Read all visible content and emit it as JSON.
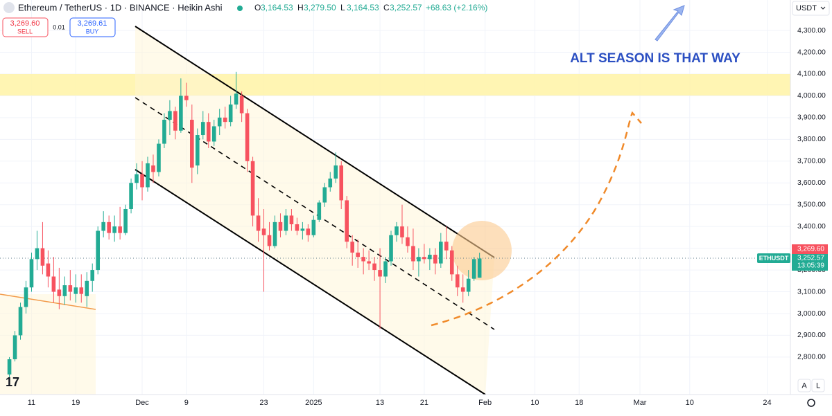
{
  "chart_data": {
    "type": "candlestick",
    "title": "Ethereum / TetherUS · 1D · BINANCE · Heikin Ashi",
    "header_values": [
      {
        "key": "O",
        "text": "3,164.53"
      },
      {
        "key": "H",
        "text": "3,279.50"
      },
      {
        "key": "L",
        "text": "3,164.53"
      },
      {
        "key": "C",
        "text": "3,252.57"
      }
    ],
    "change_text": "+68.63 (+2.16%)",
    "sell": {
      "price": "3,269.60",
      "label": "SELL"
    },
    "buy": {
      "price": "3,269.61",
      "label": "BUY"
    },
    "spread": "0.01",
    "currency": "USDT",
    "annotation": "ALT SEASON IS THAT WAY",
    "symbol": "ETHUSDT",
    "last_price": "3,252.57",
    "countdown": "13:05:39",
    "ask_price": "3,269.60",
    "scale_buttons": [
      "A",
      "L"
    ],
    "up_color": "#22ab94",
    "down_color": "#f7525f",
    "grid": true,
    "ylim": [
      2628,
      4440
    ],
    "yticks": [
      {
        "value": 2800,
        "label": "2,800.00"
      },
      {
        "value": 2900,
        "label": "2,900.00"
      },
      {
        "value": 3000,
        "label": "3,000.00"
      },
      {
        "value": 3100,
        "label": "3,100.00"
      },
      {
        "value": 3200,
        "label": "3,200.00"
      },
      {
        "value": 3300,
        "label": "3,300.00"
      },
      {
        "value": 3400,
        "label": "3,400.00"
      },
      {
        "value": 3500,
        "label": "3,500.00"
      },
      {
        "value": 3600,
        "label": "3,600.00"
      },
      {
        "value": 3700,
        "label": "3,700.00"
      },
      {
        "value": 3800,
        "label": "3,800.00"
      },
      {
        "value": 3900,
        "label": "3,900.00"
      },
      {
        "value": 4000,
        "label": "4,000.00"
      },
      {
        "value": 4100,
        "label": "4,100.00"
      },
      {
        "value": 4200,
        "label": "4,200.00"
      },
      {
        "value": 4300,
        "label": "4,300.00"
      }
    ],
    "xlim": [
      4.3,
      147.2
    ],
    "xticks": [
      {
        "value": 10,
        "label": "11"
      },
      {
        "value": 18,
        "label": "19"
      },
      {
        "value": 30,
        "label": "Dec"
      },
      {
        "value": 38,
        "label": "9"
      },
      {
        "value": 52,
        "label": "23"
      },
      {
        "value": 61,
        "label": "2025"
      },
      {
        "value": 73,
        "label": "13"
      },
      {
        "value": 81,
        "label": "21"
      },
      {
        "value": 92,
        "label": "Feb"
      },
      {
        "value": 101,
        "label": "10"
      },
      {
        "value": 109,
        "label": "18"
      },
      {
        "value": 120,
        "label": "Mar"
      },
      {
        "value": 129,
        "label": "10"
      },
      {
        "value": 143,
        "label": "24"
      }
    ],
    "x": [
      6,
      7,
      8,
      9,
      10,
      11,
      12,
      13,
      14,
      15,
      16,
      17,
      18,
      19,
      20,
      21,
      22,
      23,
      24,
      25,
      26,
      27,
      28,
      29,
      30,
      31,
      32,
      33,
      34,
      35,
      36,
      37,
      38,
      39,
      40,
      41,
      42,
      43,
      44,
      45,
      46,
      47,
      48,
      49,
      50,
      51,
      52,
      53,
      54,
      55,
      56,
      57,
      58,
      59,
      60,
      61,
      62,
      63,
      64,
      65,
      66,
      67,
      68,
      69,
      70,
      71,
      72,
      73,
      74,
      75,
      76,
      77,
      78,
      79,
      80,
      81,
      82,
      83,
      84,
      85,
      86,
      87,
      88,
      89,
      90,
      91
    ],
    "open": [
      2720,
      2790,
      2900,
      3030,
      3120,
      3250,
      3300,
      3230,
      3170,
      3110,
      3080,
      3130,
      3090,
      3120,
      3080,
      3150,
      3200,
      3380,
      3420,
      3370,
      3400,
      3370,
      3480,
      3600,
      3640,
      3580,
      3680,
      3650,
      3780,
      3890,
      3930,
      3840,
      4000,
      3890,
      3680,
      3820,
      3880,
      3790,
      3860,
      3900,
      3880,
      3960,
      4000,
      3920,
      3700,
      3450,
      3390,
      3360,
      3310,
      3420,
      3380,
      3450,
      3410,
      3380,
      3390,
      3360,
      3430,
      3510,
      3580,
      3620,
      3680,
      3520,
      3330,
      3280,
      3260,
      3240,
      3230,
      3200,
      3170,
      3240,
      3360,
      3400,
      3350,
      3310,
      3240,
      3260,
      3250,
      3270,
      3230,
      3330,
      3290,
      3180,
      3120,
      3100,
      3160,
      3164.53
    ],
    "high": [
      2800,
      2920,
      3050,
      3150,
      3280,
      3380,
      3420,
      3290,
      3260,
      3210,
      3170,
      3200,
      3180,
      3180,
      3190,
      3230,
      3400,
      3470,
      3450,
      3450,
      3490,
      3500,
      3620,
      3690,
      3700,
      3720,
      3730,
      3800,
      3920,
      3980,
      3950,
      4080,
      4060,
      3960,
      3850,
      3930,
      3920,
      3890,
      3940,
      3950,
      4000,
      4110,
      4020,
      3940,
      3720,
      3530,
      3480,
      3420,
      3450,
      3460,
      3480,
      3480,
      3440,
      3420,
      3410,
      3450,
      3520,
      3600,
      3650,
      3740,
      3700,
      3540,
      3360,
      3340,
      3300,
      3290,
      3260,
      3300,
      3260,
      3380,
      3420,
      3500,
      3400,
      3390,
      3300,
      3320,
      3300,
      3300,
      3370,
      3400,
      3310,
      3220,
      3180,
      3200,
      3260,
      3279.5
    ],
    "low": [
      2700,
      2780,
      2880,
      3000,
      3100,
      3200,
      3180,
      3120,
      3050,
      3020,
      3040,
      3060,
      3050,
      3050,
      3030,
      3100,
      3180,
      3350,
      3340,
      3330,
      3340,
      3360,
      3460,
      3570,
      3520,
      3560,
      3600,
      3630,
      3760,
      3820,
      3800,
      3830,
      3950,
      3600,
      3640,
      3800,
      3760,
      3770,
      3820,
      3850,
      3860,
      3940,
      3880,
      3650,
      3400,
      3330,
      3100,
      3290,
      3300,
      3350,
      3360,
      3380,
      3360,
      3340,
      3330,
      3350,
      3420,
      3490,
      3560,
      3600,
      3480,
      3300,
      3220,
      3210,
      3180,
      3200,
      3150,
      2930,
      3140,
      3220,
      3330,
      3320,
      3280,
      3200,
      3170,
      3230,
      3200,
      3180,
      3210,
      3250,
      3150,
      3080,
      3050,
      3080,
      3150,
      3164.53
    ],
    "close": [
      2790,
      2900,
      3030,
      3120,
      3250,
      3300,
      3220,
      3170,
      3100,
      3080,
      3130,
      3100,
      3120,
      3090,
      3150,
      3200,
      3380,
      3420,
      3370,
      3400,
      3370,
      3480,
      3600,
      3640,
      3580,
      3690,
      3650,
      3780,
      3890,
      3930,
      3840,
      4000,
      3980,
      3670,
      3820,
      3880,
      3790,
      3860,
      3900,
      3880,
      3960,
      4010,
      3920,
      3700,
      3450,
      3380,
      3360,
      3310,
      3420,
      3380,
      3450,
      3410,
      3380,
      3390,
      3360,
      3430,
      3510,
      3580,
      3620,
      3680,
      3520,
      3330,
      3280,
      3260,
      3240,
      3230,
      3200,
      3170,
      3240,
      3360,
      3400,
      3350,
      3310,
      3240,
      3260,
      3250,
      3270,
      3230,
      3330,
      3290,
      3180,
      3120,
      3100,
      3160,
      3250,
      3252.57
    ]
  }
}
